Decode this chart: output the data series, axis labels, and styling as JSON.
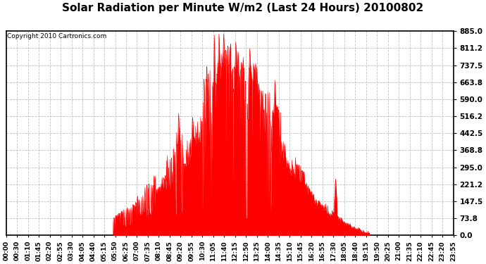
{
  "title": "Solar Radiation per Minute W/m2 (Last 24 Hours) 20100802",
  "copyright_text": "Copyright 2010 Cartronics.com",
  "yticks": [
    0.0,
    73.8,
    147.5,
    221.2,
    295.0,
    368.8,
    442.5,
    516.2,
    590.0,
    663.8,
    737.5,
    811.2,
    885.0
  ],
  "ymin": 0.0,
  "ymax": 885.0,
  "bg_color": "#ffffff",
  "plot_bg_color": "#ffffff",
  "bar_color": "#ff0000",
  "grid_color": "#bbbbbb",
  "border_color": "#000000",
  "title_fontsize": 11,
  "copyright_fontsize": 6.5,
  "tick_fontsize": 6.5,
  "ytick_fontsize": 7.5,
  "xtick_labels": [
    "00:00",
    "00:30",
    "01:10",
    "01:45",
    "02:20",
    "02:55",
    "03:30",
    "04:05",
    "04:40",
    "05:15",
    "05:50",
    "06:25",
    "07:00",
    "07:35",
    "08:10",
    "08:45",
    "09:20",
    "09:55",
    "10:30",
    "11:05",
    "11:40",
    "12:15",
    "12:50",
    "13:25",
    "14:00",
    "14:35",
    "15:10",
    "15:45",
    "16:20",
    "16:55",
    "17:30",
    "18:05",
    "18:40",
    "19:15",
    "19:50",
    "20:25",
    "21:00",
    "21:35",
    "22:10",
    "22:45",
    "23:20",
    "23:55"
  ],
  "hline_color": "#ff0000",
  "n_minutes": 1440,
  "rise_hour": 5.75,
  "set_hour": 19.5,
  "peak_hour": 12.5,
  "peak_value": 885.0
}
